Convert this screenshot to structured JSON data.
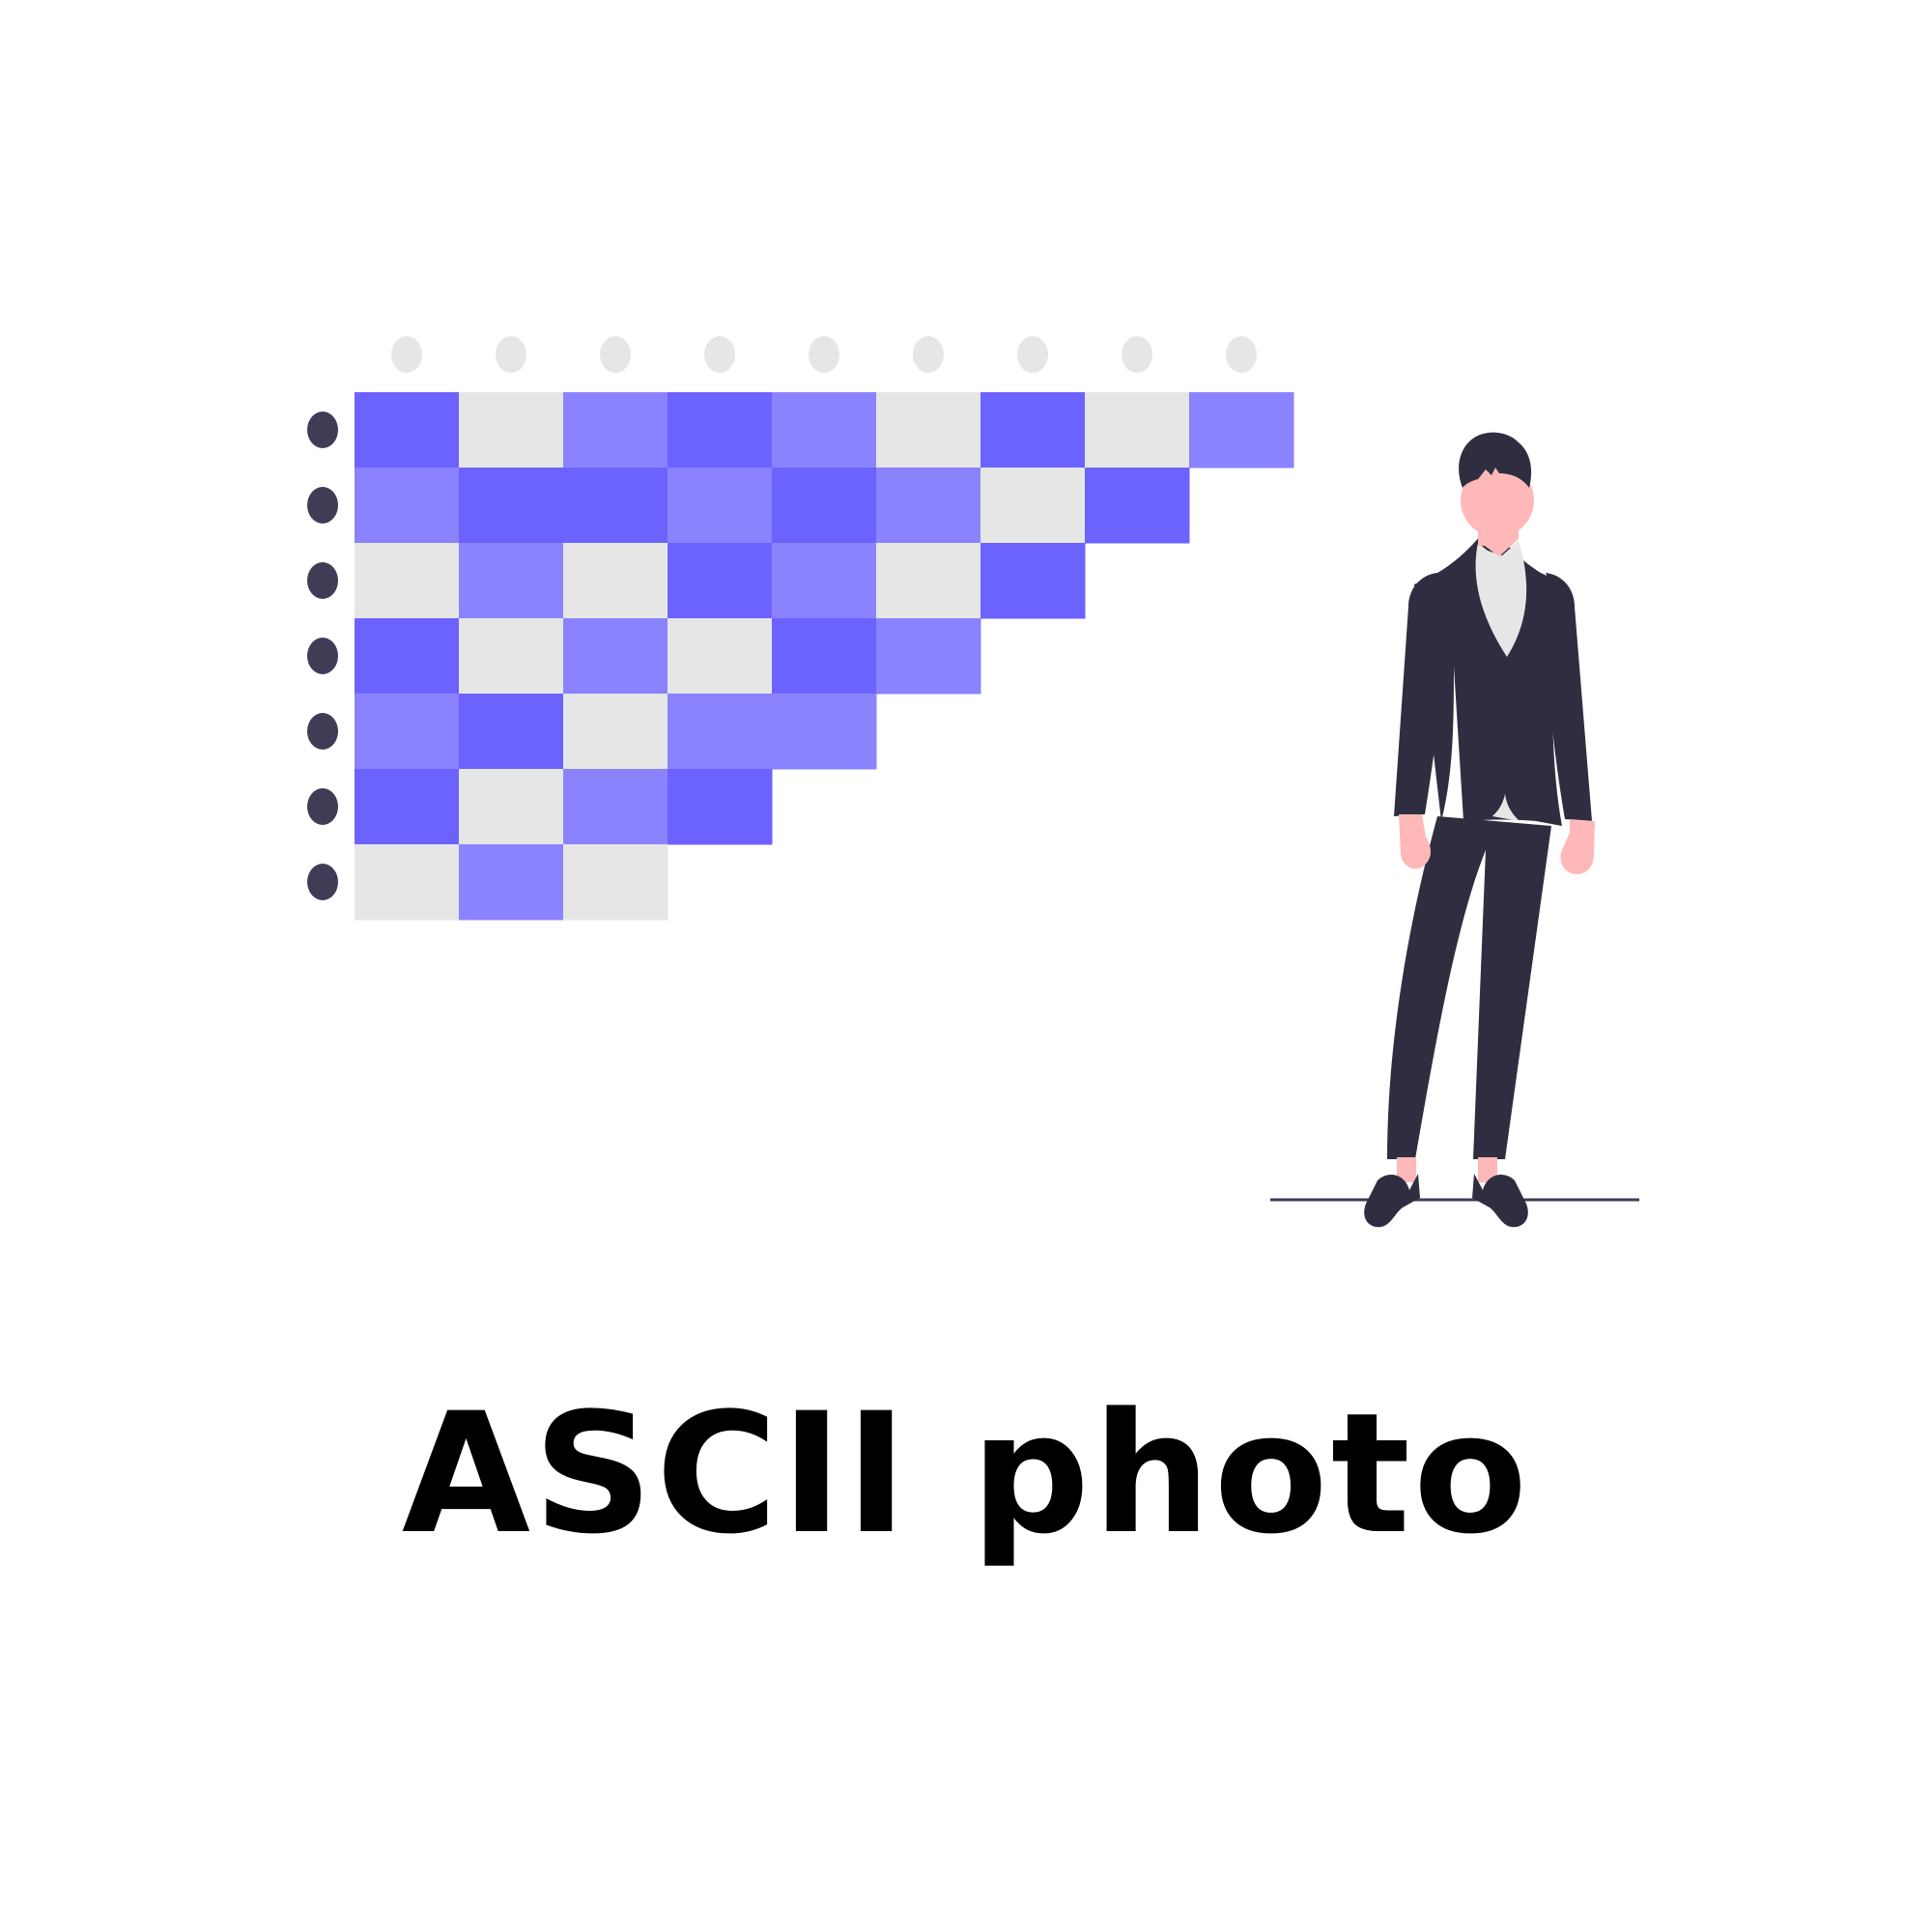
{
  "caption": "ASCII photo",
  "colors": {
    "dark_cell": "#6c63ff",
    "light_cell": "#8a83fd",
    "empty_cell": "#e6e6e6",
    "column_dot": "#e6e6e6",
    "row_dot": "#3f3d56",
    "suit": "#2f2e41",
    "skin": "#ffb8b8",
    "shirt": "#e6e6e6",
    "ground": "#3f3d56"
  },
  "grid": {
    "row_lengths": [
      9,
      8,
      7,
      6,
      5,
      4,
      3
    ],
    "cells": [
      [
        "dark",
        "empty",
        "light",
        "dark",
        "light",
        "empty",
        "dark",
        "empty",
        "light"
      ],
      [
        "light",
        "dark",
        "dark",
        "light",
        "dark",
        "light",
        "empty",
        "dark"
      ],
      [
        "empty",
        "light",
        "empty",
        "dark",
        "light",
        "empty",
        "dark"
      ],
      [
        "dark",
        "empty",
        "light",
        "empty",
        "dark",
        "light"
      ],
      [
        "light",
        "dark",
        "empty",
        "light",
        "light"
      ],
      [
        "dark",
        "empty",
        "light",
        "dark"
      ],
      [
        "empty",
        "light",
        "empty"
      ]
    ]
  },
  "figure": {
    "subject": "person-in-dark-suit",
    "pose": "standing"
  }
}
